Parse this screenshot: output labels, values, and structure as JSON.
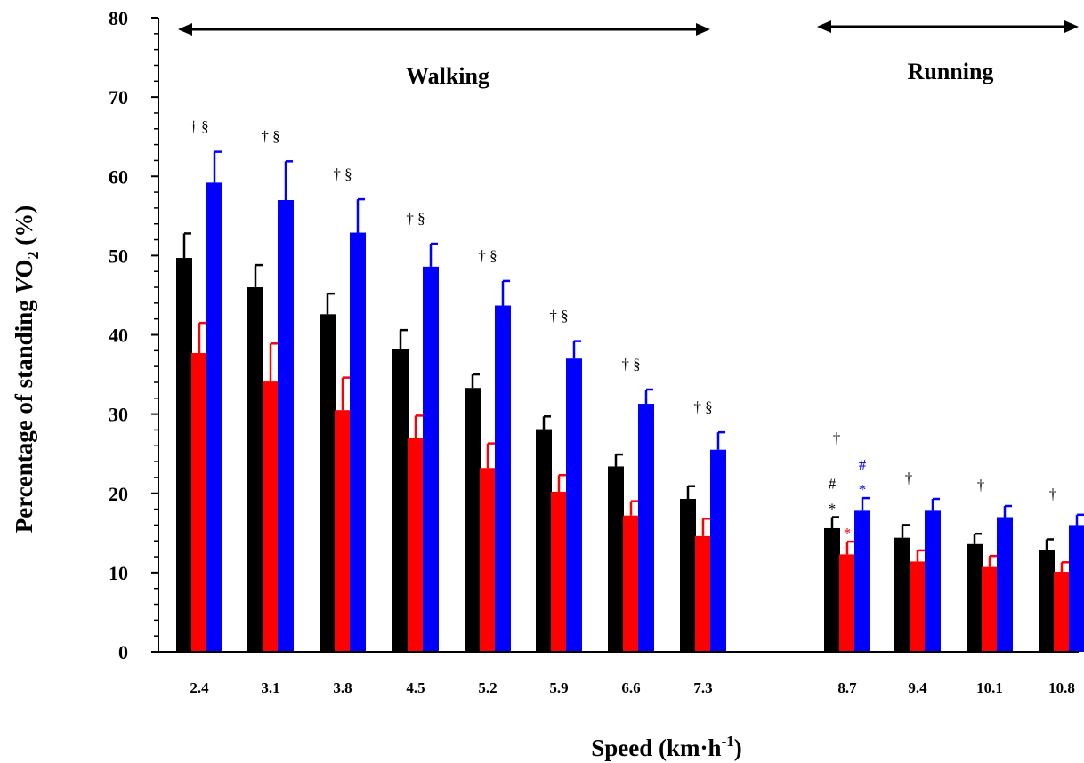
{
  "chart_data": {
    "type": "bar",
    "ylabel_prefix": "Percentage of standing ",
    "ylabel_var": "V",
    "ylabel_o": "O",
    "ylabel_sub": "2",
    "ylabel_suffix": " (%)",
    "xlabel_main": "Speed (km·h",
    "xlabel_sup": "-1",
    "xlabel_close": ")",
    "ylim": [
      0,
      80
    ],
    "yticks": [
      "0",
      "10",
      "20",
      "30",
      "40",
      "50",
      "60",
      "70",
      "80"
    ],
    "region_labels": {
      "walking": "Walking",
      "running": "Running"
    },
    "categories": [
      "2.4",
      "3.1",
      "3.8",
      "4.5",
      "5.2",
      "5.9",
      "6.6",
      "7.3",
      "8.7",
      "9.4",
      "10.1",
      "10.8"
    ],
    "series": [
      {
        "color": "#000000",
        "values": [
          49.7,
          46.0,
          42.6,
          38.2,
          33.3,
          28.1,
          23.4,
          19.3,
          15.6,
          14.4,
          13.6,
          12.9
        ],
        "errors": [
          3.1,
          2.8,
          2.6,
          2.4,
          1.7,
          1.6,
          1.5,
          1.6,
          1.4,
          1.6,
          1.3,
          1.3
        ]
      },
      {
        "color": "#ff0000",
        "values": [
          37.7,
          34.1,
          30.5,
          27.0,
          23.2,
          20.2,
          17.2,
          14.6,
          12.3,
          11.4,
          10.7,
          10.1
        ],
        "errors": [
          3.8,
          4.8,
          4.1,
          2.8,
          3.1,
          2.1,
          1.8,
          2.2,
          1.6,
          1.4,
          1.4,
          1.2
        ]
      },
      {
        "color": "#0000ff",
        "values": [
          59.2,
          57.0,
          52.9,
          48.6,
          43.7,
          37.0,
          31.3,
          25.5,
          17.8,
          17.8,
          17.0,
          16.0
        ],
        "errors": [
          3.9,
          4.9,
          4.2,
          2.9,
          3.1,
          2.2,
          1.8,
          2.2,
          1.6,
          1.5,
          1.4,
          1.3
        ]
      }
    ],
    "annotations": [
      {
        "category": "2.4",
        "text": "† §",
        "color": "#000000"
      },
      {
        "category": "3.1",
        "text": "† §",
        "color": "#000000"
      },
      {
        "category": "3.8",
        "text": "† §",
        "color": "#000000"
      },
      {
        "category": "4.5",
        "text": "† §",
        "color": "#000000"
      },
      {
        "category": "5.2",
        "text": "† §",
        "color": "#000000"
      },
      {
        "category": "5.9",
        "text": "† §",
        "color": "#000000"
      },
      {
        "category": "6.6",
        "text": "† §",
        "color": "#000000"
      },
      {
        "category": "7.3",
        "text": "† §",
        "color": "#000000"
      },
      {
        "category": "8.7",
        "text": "†",
        "color": "#000000"
      },
      {
        "category": "9.4",
        "text": "†",
        "color": "#000000"
      },
      {
        "category": "10.1",
        "text": "†",
        "color": "#000000"
      },
      {
        "category": "10.8",
        "text": "†",
        "color": "#000000"
      }
    ],
    "bar_marks": [
      {
        "category": "8.7",
        "series": 0,
        "lines": [
          "#",
          "*"
        ],
        "color": "#000000"
      },
      {
        "category": "8.7",
        "series": 1,
        "lines": [
          "*"
        ],
        "color": "#ff0000"
      },
      {
        "category": "8.7",
        "series": 2,
        "lines": [
          "#",
          "*"
        ],
        "color": "#0000ff"
      }
    ]
  }
}
